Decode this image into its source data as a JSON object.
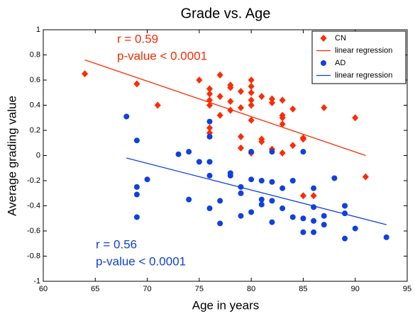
{
  "chart_data": {
    "type": "scatter",
    "title": "Grade vs. Age",
    "x_label": "Age in years",
    "y_label": "Average grading value",
    "xlim": [
      60,
      95
    ],
    "xticks": [
      60,
      65,
      70,
      75,
      80,
      85,
      90,
      95
    ],
    "ylim": [
      -1,
      1
    ],
    "yticks": [
      -1,
      -0.8,
      -0.6,
      -0.4,
      -0.2,
      0,
      0.2,
      0.4,
      0.6,
      0.8,
      1
    ],
    "annotations": [
      "r = 0.59",
      "p-value < 0.0001",
      "r = 0.56",
      "p-value < 0.0001"
    ],
    "series": [
      {
        "name": "CN",
        "color": "#ff2a00",
        "kind": "scatter",
        "marker": "diamond",
        "x": [
          64,
          69,
          71,
          75,
          76,
          76,
          76,
          76,
          76,
          76,
          77,
          77,
          77,
          78,
          78,
          78,
          78,
          79,
          79,
          79,
          79,
          80,
          80,
          80,
          80,
          80,
          80,
          80,
          81,
          81,
          81,
          82,
          82,
          82,
          83,
          83,
          83,
          83,
          83,
          84,
          84,
          85,
          85,
          85,
          86,
          87,
          90,
          91
        ],
        "values": [
          0.65,
          0.57,
          0.4,
          0.6,
          0.53,
          0.49,
          0.44,
          0.4,
          0.22,
          0.18,
          0.64,
          0.47,
          0.32,
          0.56,
          0.54,
          0.43,
          0.36,
          0.51,
          0.38,
          0.15,
          0.06,
          0.6,
          0.55,
          0.5,
          0.44,
          0.4,
          0.28,
          0.02,
          0.47,
          0.13,
          0.11,
          0.45,
          0.42,
          0.05,
          0.44,
          0.32,
          0.3,
          0.25,
          0.02,
          0.37,
          0.08,
          0.14,
          0.13,
          -0.32,
          -0.32,
          0.38,
          0.3,
          -0.17
        ]
      },
      {
        "name": "linear regression",
        "color": "#ff2a00",
        "kind": "line",
        "x": [
          64,
          91
        ],
        "values": [
          0.76,
          0.0
        ]
      },
      {
        "name": "AD",
        "color": "#1040e0",
        "kind": "scatter",
        "marker": "circle",
        "x": [
          68,
          69,
          69,
          69,
          69,
          70,
          73,
          74,
          74,
          75,
          76,
          76,
          76,
          76,
          76,
          77,
          77,
          78,
          78,
          79,
          79,
          79,
          80,
          80,
          80,
          81,
          81,
          81,
          82,
          82,
          82,
          82,
          83,
          83,
          84,
          84,
          85,
          85,
          85,
          86,
          86,
          86,
          86,
          87,
          87,
          88,
          89,
          89,
          89,
          90,
          93
        ],
        "values": [
          0.31,
          0.12,
          -0.25,
          -0.31,
          -0.49,
          -0.19,
          0.01,
          0.03,
          -0.35,
          -0.05,
          0.27,
          0.15,
          -0.05,
          -0.16,
          -0.42,
          -0.36,
          -0.54,
          -0.14,
          -0.16,
          -0.25,
          -0.3,
          -0.48,
          0.03,
          -0.19,
          -0.45,
          -0.2,
          -0.35,
          -0.39,
          0.03,
          -0.21,
          -0.36,
          -0.53,
          -0.26,
          -0.42,
          -0.2,
          -0.49,
          0.03,
          -0.5,
          -0.61,
          -0.26,
          -0.41,
          -0.52,
          -0.61,
          -0.48,
          -0.55,
          -0.18,
          -0.4,
          -0.46,
          -0.66,
          -0.58,
          -0.65
        ]
      },
      {
        "name": "linear regression",
        "color": "#1040e0",
        "kind": "line",
        "x": [
          68,
          93
        ],
        "values": [
          -0.02,
          -0.55
        ]
      }
    ]
  }
}
